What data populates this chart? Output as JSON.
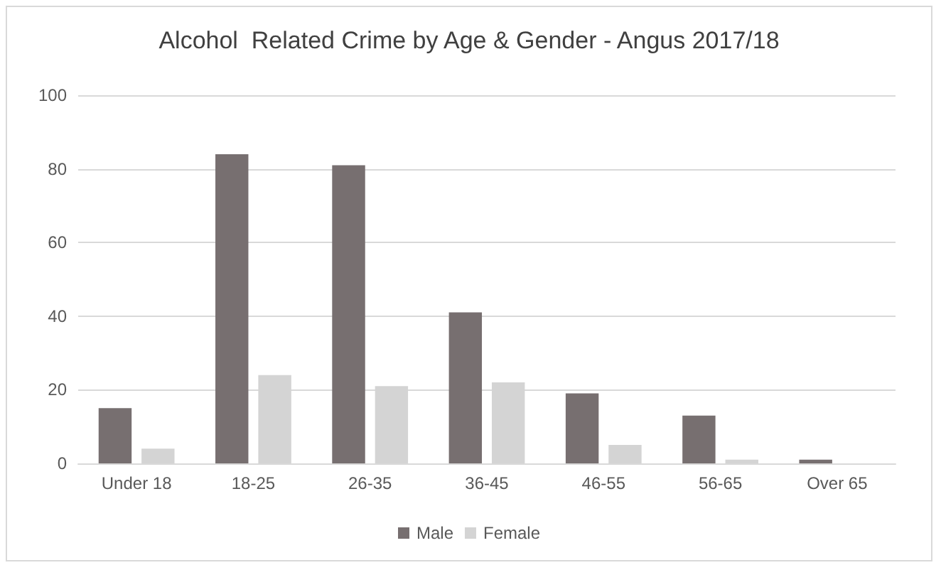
{
  "chart_data": {
    "type": "bar",
    "title": "Alcohol  Related Crime by Age & Gender - Angus 2017/18",
    "categories": [
      "Under 18",
      "18-25",
      "26-35",
      "36-45",
      "46-55",
      "56-65",
      "Over 65"
    ],
    "series": [
      {
        "name": "Male",
        "color": "#776f70",
        "values": [
          15,
          84,
          81,
          41,
          19,
          13,
          1
        ]
      },
      {
        "name": "Female",
        "color": "#d4d4d4",
        "values": [
          4,
          24,
          21,
          22,
          5,
          1,
          0
        ]
      }
    ],
    "ylim": [
      0,
      100
    ],
    "yticks": [
      0,
      20,
      40,
      60,
      80,
      100
    ],
    "grid": "y",
    "legend": "bottom"
  }
}
